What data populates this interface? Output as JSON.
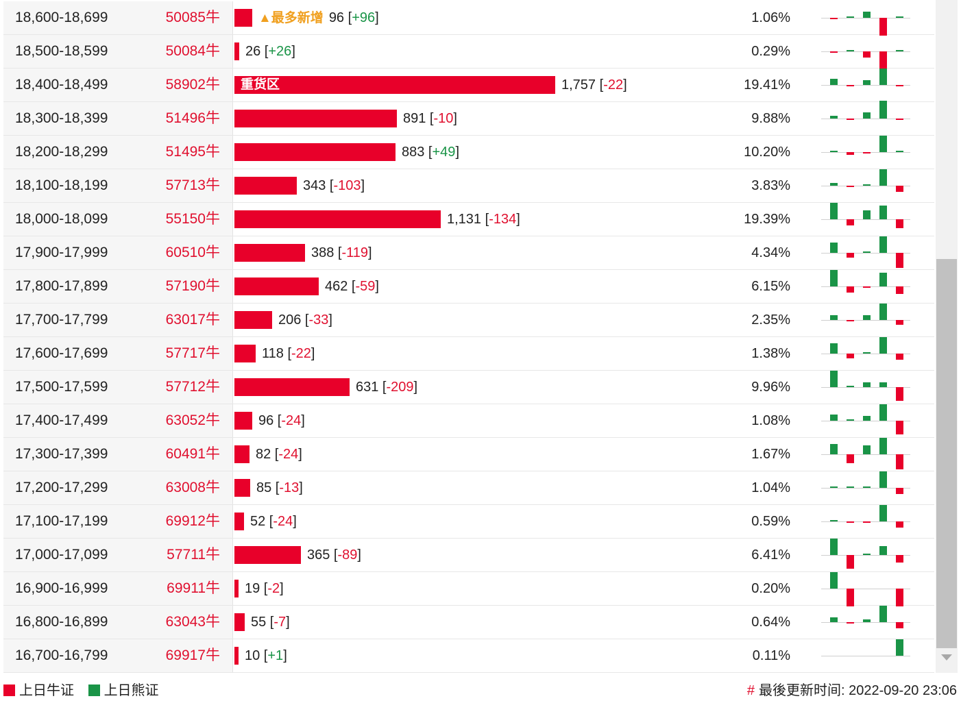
{
  "rows": [
    {
      "range": "18,600-18,699",
      "code": "50085牛",
      "bar_fraction": 0.0546,
      "bar_label": "",
      "new_tag": "▲最多新增",
      "count": "96",
      "change": "+96",
      "pct": "1.06%",
      "spark": [
        {
          "dir": "down",
          "v": 1
        },
        {
          "dir": "up",
          "v": 1
        },
        {
          "dir": "up",
          "v": 4
        },
        {
          "dir": "down",
          "v": 12
        },
        {
          "dir": "up",
          "v": 1
        }
      ]
    },
    {
      "range": "18,500-18,599",
      "code": "50084牛",
      "bar_fraction": 0.0148,
      "bar_label": "",
      "new_tag": "",
      "count": "26",
      "change": "+26",
      "pct": "0.29%",
      "spark": [
        {
          "dir": "down",
          "v": 1
        },
        {
          "dir": "up",
          "v": 1
        },
        {
          "dir": "down",
          "v": 4
        },
        {
          "dir": "down",
          "v": 12
        },
        {
          "dir": "up",
          "v": 1
        }
      ]
    },
    {
      "range": "18,400-18,499",
      "code": "58902牛",
      "bar_fraction": 1.0,
      "bar_label": "重货区",
      "new_tag": "",
      "count": "1,757",
      "change": "-22",
      "pct": "19.41%",
      "spark": [
        {
          "dir": "up",
          "v": 4
        },
        {
          "dir": "down",
          "v": 1
        },
        {
          "dir": "up",
          "v": 3
        },
        {
          "dir": "up",
          "v": 11
        },
        {
          "dir": "down",
          "v": 1
        }
      ]
    },
    {
      "range": "18,300-18,399",
      "code": "51496牛",
      "bar_fraction": 0.507,
      "bar_label": "",
      "new_tag": "",
      "count": "891",
      "change": "-10",
      "pct": "9.88%",
      "spark": [
        {
          "dir": "up",
          "v": 2
        },
        {
          "dir": "down",
          "v": 1
        },
        {
          "dir": "up",
          "v": 4
        },
        {
          "dir": "up",
          "v": 12
        },
        {
          "dir": "down",
          "v": 1
        }
      ]
    },
    {
      "range": "18,200-18,299",
      "code": "51495牛",
      "bar_fraction": 0.5026,
      "bar_label": "",
      "new_tag": "",
      "count": "883",
      "change": "+49",
      "pct": "10.20%",
      "spark": [
        {
          "dir": "up",
          "v": 1
        },
        {
          "dir": "down",
          "v": 2
        },
        {
          "dir": "down",
          "v": 1
        },
        {
          "dir": "up",
          "v": 11
        },
        {
          "dir": "up",
          "v": 1
        }
      ]
    },
    {
      "range": "18,100-18,199",
      "code": "57713牛",
      "bar_fraction": 0.1952,
      "bar_label": "",
      "new_tag": "",
      "count": "343",
      "change": "-103",
      "pct": "3.83%",
      "spark": [
        {
          "dir": "up",
          "v": 2
        },
        {
          "dir": "down",
          "v": 1
        },
        {
          "dir": "up",
          "v": 1
        },
        {
          "dir": "up",
          "v": 11
        },
        {
          "dir": "down",
          "v": 4
        }
      ]
    },
    {
      "range": "18,000-18,099",
      "code": "55150牛",
      "bar_fraction": 0.6437,
      "bar_label": "",
      "new_tag": "",
      "count": "1,131",
      "change": "-134",
      "pct": "19.39%",
      "spark": [
        {
          "dir": "up",
          "v": 11
        },
        {
          "dir": "down",
          "v": 4
        },
        {
          "dir": "up",
          "v": 6
        },
        {
          "dir": "up",
          "v": 9
        },
        {
          "dir": "down",
          "v": 6
        }
      ]
    },
    {
      "range": "17,900-17,999",
      "code": "60510牛",
      "bar_fraction": 0.2208,
      "bar_label": "",
      "new_tag": "",
      "count": "388",
      "change": "-119",
      "pct": "4.34%",
      "spark": [
        {
          "dir": "up",
          "v": 7
        },
        {
          "dir": "down",
          "v": 3
        },
        {
          "dir": "up",
          "v": 1
        },
        {
          "dir": "up",
          "v": 11
        },
        {
          "dir": "down",
          "v": 10
        }
      ]
    },
    {
      "range": "17,800-17,899",
      "code": "57190牛",
      "bar_fraction": 0.263,
      "bar_label": "",
      "new_tag": "",
      "count": "462",
      "change": "-59",
      "pct": "6.15%",
      "spark": [
        {
          "dir": "up",
          "v": 11
        },
        {
          "dir": "down",
          "v": 4
        },
        {
          "dir": "down",
          "v": 1
        },
        {
          "dir": "up",
          "v": 9
        },
        {
          "dir": "down",
          "v": 5
        }
      ]
    },
    {
      "range": "17,700-17,799",
      "code": "63017牛",
      "bar_fraction": 0.1172,
      "bar_label": "",
      "new_tag": "",
      "count": "206",
      "change": "-33",
      "pct": "2.35%",
      "spark": [
        {
          "dir": "up",
          "v": 3
        },
        {
          "dir": "down",
          "v": 1
        },
        {
          "dir": "up",
          "v": 3
        },
        {
          "dir": "up",
          "v": 11
        },
        {
          "dir": "down",
          "v": 3
        }
      ]
    },
    {
      "range": "17,600-17,699",
      "code": "57717牛",
      "bar_fraction": 0.0672,
      "bar_label": "",
      "new_tag": "",
      "count": "118",
      "change": "-22",
      "pct": "1.38%",
      "spark": [
        {
          "dir": "up",
          "v": 7
        },
        {
          "dir": "down",
          "v": 3
        },
        {
          "dir": "up",
          "v": 1
        },
        {
          "dir": "up",
          "v": 11
        },
        {
          "dir": "down",
          "v": 4
        }
      ]
    },
    {
      "range": "17,500-17,599",
      "code": "57712牛",
      "bar_fraction": 0.3591,
      "bar_label": "",
      "new_tag": "",
      "count": "631",
      "change": "-209",
      "pct": "9.96%",
      "spark": [
        {
          "dir": "up",
          "v": 11
        },
        {
          "dir": "up",
          "v": 1
        },
        {
          "dir": "up",
          "v": 3
        },
        {
          "dir": "up",
          "v": 3
        },
        {
          "dir": "down",
          "v": 9
        }
      ]
    },
    {
      "range": "17,400-17,499",
      "code": "63052牛",
      "bar_fraction": 0.0546,
      "bar_label": "",
      "new_tag": "",
      "count": "96",
      "change": "-24",
      "pct": "1.08%",
      "spark": [
        {
          "dir": "up",
          "v": 4
        },
        {
          "dir": "up",
          "v": 1
        },
        {
          "dir": "up",
          "v": 3
        },
        {
          "dir": "up",
          "v": 11
        },
        {
          "dir": "down",
          "v": 9
        }
      ]
    },
    {
      "range": "17,300-17,399",
      "code": "60491牛",
      "bar_fraction": 0.0467,
      "bar_label": "",
      "new_tag": "",
      "count": "82",
      "change": "-24",
      "pct": "1.67%",
      "spark": [
        {
          "dir": "up",
          "v": 7
        },
        {
          "dir": "down",
          "v": 6
        },
        {
          "dir": "up",
          "v": 6
        },
        {
          "dir": "up",
          "v": 11
        },
        {
          "dir": "down",
          "v": 10
        }
      ]
    },
    {
      "range": "17,200-17,299",
      "code": "63008牛",
      "bar_fraction": 0.0484,
      "bar_label": "",
      "new_tag": "",
      "count": "85",
      "change": "-13",
      "pct": "1.04%",
      "spark": [
        {
          "dir": "up",
          "v": 1
        },
        {
          "dir": "up",
          "v": 1
        },
        {
          "dir": "up",
          "v": 1
        },
        {
          "dir": "up",
          "v": 11
        },
        {
          "dir": "down",
          "v": 4
        }
      ]
    },
    {
      "range": "17,100-17,199",
      "code": "69912牛",
      "bar_fraction": 0.0296,
      "bar_label": "",
      "new_tag": "",
      "count": "52",
      "change": "-24",
      "pct": "0.59%",
      "spark": [
        {
          "dir": "up",
          "v": 1
        },
        {
          "dir": "down",
          "v": 1
        },
        {
          "dir": "down",
          "v": 1
        },
        {
          "dir": "up",
          "v": 11
        },
        {
          "dir": "down",
          "v": 4
        }
      ]
    },
    {
      "range": "17,000-17,099",
      "code": "57711牛",
      "bar_fraction": 0.2077,
      "bar_label": "",
      "new_tag": "",
      "count": "365",
      "change": "-89",
      "pct": "6.41%",
      "spark": [
        {
          "dir": "up",
          "v": 11
        },
        {
          "dir": "down",
          "v": 9
        },
        {
          "dir": "up",
          "v": 1
        },
        {
          "dir": "up",
          "v": 6
        },
        {
          "dir": "down",
          "v": 5
        }
      ]
    },
    {
      "range": "16,900-16,999",
      "code": "69911牛",
      "bar_fraction": 0.0108,
      "bar_label": "",
      "new_tag": "",
      "count": "19",
      "change": "-2",
      "pct": "0.20%",
      "spark": [
        {
          "dir": "up",
          "v": 11
        },
        {
          "dir": "down",
          "v": 12
        },
        {
          "dir": "up",
          "v": 0
        },
        {
          "dir": "up",
          "v": 0
        },
        {
          "dir": "down",
          "v": 12
        }
      ]
    },
    {
      "range": "16,800-16,899",
      "code": "63043牛",
      "bar_fraction": 0.0313,
      "bar_label": "",
      "new_tag": "",
      "count": "55",
      "change": "-7",
      "pct": "0.64%",
      "spark": [
        {
          "dir": "up",
          "v": 3
        },
        {
          "dir": "down",
          "v": 1
        },
        {
          "dir": "up",
          "v": 2
        },
        {
          "dir": "up",
          "v": 11
        },
        {
          "dir": "down",
          "v": 4
        }
      ]
    },
    {
      "range": "16,700-16,799",
      "code": "69917牛",
      "bar_fraction": 0.0057,
      "bar_label": "",
      "new_tag": "",
      "count": "10",
      "change": "+1",
      "pct": "0.11%",
      "spark": [
        {
          "dir": "up",
          "v": 0
        },
        {
          "dir": "up",
          "v": 0
        },
        {
          "dir": "up",
          "v": 0
        },
        {
          "dir": "up",
          "v": 0
        },
        {
          "dir": "up",
          "v": 11
        }
      ]
    }
  ],
  "legend": {
    "bull_label": "上日牛证",
    "bear_label": "上日熊证"
  },
  "footer": {
    "hash": "#",
    "update_label": "最後更新时间: 2022-09-20 23:06"
  },
  "colors": {
    "bull": "#e8002a",
    "bear": "#1a9447",
    "new_tag": "#f0a020"
  }
}
